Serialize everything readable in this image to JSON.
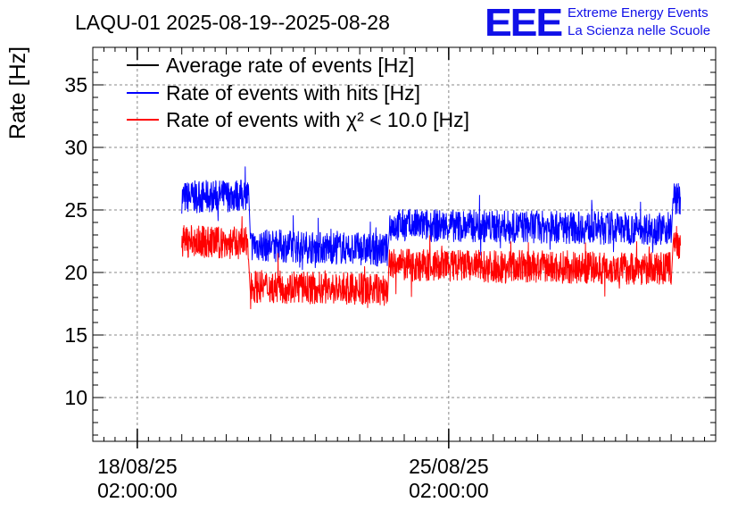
{
  "header": {
    "title": "LAQU-01 2025-08-19--2025-08-28",
    "logo_text": "EEE",
    "logo_line1": "Extreme Energy Events",
    "logo_line2": "La Scienza nelle Scuole"
  },
  "chart_data": {
    "type": "line",
    "title": "LAQU-01 2025-08-19--2025-08-28",
    "ylabel": "Rate [Hz]",
    "xlabel": "",
    "ylim": [
      6.5,
      38
    ],
    "y_ticks": [
      10,
      15,
      20,
      25,
      30,
      35
    ],
    "y_tick_labels": [
      "10",
      "15",
      "20",
      "25",
      "30",
      "35"
    ],
    "xlim": [
      "2025-08-17",
      "2025-08-31"
    ],
    "x_ticks": [
      "2025-08-18",
      "2025-08-25"
    ],
    "x_tick_labels": [
      {
        "date": "18/08/25",
        "time": "02:00:00"
      },
      {
        "date": "25/08/25",
        "time": "02:00:00"
      }
    ],
    "grid": true,
    "legend_position": "top-left",
    "series": [
      {
        "name": "Average rate of events [Hz]",
        "color": "#000000",
        "x": [],
        "y": []
      },
      {
        "name": "Rate of events with hits [Hz]",
        "color": "#0000ff",
        "x": [
          "2025-08-19 00:00",
          "2025-08-20 12:00",
          "2025-08-20 13:00",
          "2025-08-23 15:00",
          "2025-08-23 16:00",
          "2025-08-30 00:00",
          "2025-08-30 01:00",
          "2025-08-30 05:00"
        ],
        "y": [
          26.0,
          26.2,
          22.2,
          21.8,
          23.8,
          23.5,
          26.0,
          25.8
        ]
      },
      {
        "name": "Rate of events with χ² < 10.0 [Hz]",
        "color": "#ff0000",
        "x": [
          "2025-08-19 00:00",
          "2025-08-20 12:00",
          "2025-08-20 13:00",
          "2025-08-23 15:00",
          "2025-08-23 16:00",
          "2025-08-30 00:00",
          "2025-08-30 01:00",
          "2025-08-30 05:00"
        ],
        "y": [
          22.5,
          22.3,
          18.9,
          18.6,
          20.6,
          20.3,
          22.5,
          22.3
        ]
      }
    ]
  }
}
